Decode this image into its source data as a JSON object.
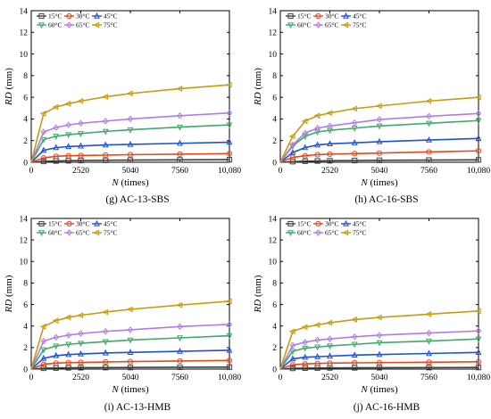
{
  "legend": {
    "series": [
      {
        "name": "15°C",
        "color": "#3f3f3f",
        "marker": "square"
      },
      {
        "name": "30°C",
        "color": "#e3491a",
        "marker": "circle"
      },
      {
        "name": "45°C",
        "color": "#1f4fd8",
        "marker": "triangle-up"
      },
      {
        "name": "60°C",
        "color": "#3fa86a",
        "marker": "triangle-down"
      },
      {
        "name": "65°C",
        "color": "#b07be8",
        "marker": "diamond"
      },
      {
        "name": "75°C",
        "color": "#c99a0a",
        "marker": "triangle-left"
      }
    ]
  },
  "axes": {
    "xlabel_var": "N",
    "xlabel_unit": " (times)",
    "ylabel_var": "RD",
    "ylabel_unit": " (mm)",
    "xticks": [
      "0",
      "2520",
      "5040",
      "7560",
      "10,080"
    ],
    "yticks": [
      "0",
      "2",
      "4",
      "6",
      "8",
      "10",
      "12",
      "14"
    ],
    "xlim": [
      0,
      10080
    ],
    "ylim": [
      0,
      14
    ]
  },
  "chart_data": [
    {
      "type": "line",
      "caption_letter": "(g)",
      "caption_text": " AC-13-SBS",
      "x": [
        0,
        630,
        1260,
        1890,
        2520,
        3780,
        5040,
        7560,
        10080
      ],
      "series": [
        {
          "name": "15°C",
          "values": [
            0,
            0.08,
            0.12,
            0.14,
            0.16,
            0.18,
            0.2,
            0.22,
            0.24
          ]
        },
        {
          "name": "30°C",
          "values": [
            0,
            0.4,
            0.55,
            0.6,
            0.62,
            0.66,
            0.7,
            0.75,
            0.8
          ]
        },
        {
          "name": "45°C",
          "values": [
            0,
            1.1,
            1.35,
            1.45,
            1.5,
            1.6,
            1.65,
            1.75,
            1.85
          ]
        },
        {
          "name": "60°C",
          "values": [
            0,
            2.1,
            2.4,
            2.55,
            2.65,
            2.85,
            3.0,
            3.25,
            3.45
          ]
        },
        {
          "name": "65°C",
          "values": [
            0,
            2.8,
            3.2,
            3.45,
            3.6,
            3.8,
            4.0,
            4.3,
            4.55
          ]
        },
        {
          "name": "75°C",
          "values": [
            0,
            4.5,
            5.1,
            5.4,
            5.65,
            6.05,
            6.35,
            6.8,
            7.15
          ]
        }
      ]
    },
    {
      "type": "line",
      "caption_letter": "(h)",
      "caption_text": " AC-16-SBS",
      "x": [
        0,
        630,
        1260,
        1890,
        2520,
        3780,
        5040,
        7560,
        10080
      ],
      "series": [
        {
          "name": "15°C",
          "values": [
            0,
            0.06,
            0.1,
            0.12,
            0.14,
            0.16,
            0.18,
            0.2,
            0.22
          ]
        },
        {
          "name": "30°C",
          "values": [
            0,
            0.45,
            0.6,
            0.7,
            0.75,
            0.8,
            0.85,
            0.95,
            1.05
          ]
        },
        {
          "name": "45°C",
          "values": [
            0,
            0.9,
            1.35,
            1.6,
            1.7,
            1.8,
            1.9,
            2.05,
            2.2
          ]
        },
        {
          "name": "60°C",
          "values": [
            0,
            1.5,
            2.4,
            2.8,
            2.95,
            3.15,
            3.35,
            3.6,
            3.85
          ]
        },
        {
          "name": "65°C",
          "values": [
            0,
            1.6,
            2.7,
            3.15,
            3.35,
            3.65,
            3.95,
            4.25,
            4.5
          ]
        },
        {
          "name": "75°C",
          "values": [
            0,
            2.4,
            3.8,
            4.3,
            4.55,
            4.95,
            5.2,
            5.65,
            6.0
          ]
        }
      ]
    },
    {
      "type": "line",
      "caption_letter": "(i)",
      "caption_text": " AC-13-HMB",
      "x": [
        0,
        630,
        1260,
        1890,
        2520,
        3780,
        5040,
        7560,
        10080
      ],
      "series": [
        {
          "name": "15°C",
          "values": [
            0,
            0.08,
            0.1,
            0.12,
            0.13,
            0.14,
            0.15,
            0.17,
            0.18
          ]
        },
        {
          "name": "30°C",
          "values": [
            0,
            0.45,
            0.55,
            0.6,
            0.62,
            0.66,
            0.7,
            0.75,
            0.8
          ]
        },
        {
          "name": "45°C",
          "values": [
            0,
            1.0,
            1.25,
            1.35,
            1.4,
            1.5,
            1.55,
            1.65,
            1.75
          ]
        },
        {
          "name": "60°C",
          "values": [
            0,
            1.8,
            2.15,
            2.3,
            2.4,
            2.55,
            2.7,
            2.9,
            3.1
          ]
        },
        {
          "name": "65°C",
          "values": [
            0,
            2.6,
            2.95,
            3.15,
            3.3,
            3.5,
            3.65,
            3.95,
            4.15
          ]
        },
        {
          "name": "75°C",
          "values": [
            0,
            3.95,
            4.5,
            4.8,
            5.0,
            5.3,
            5.55,
            5.95,
            6.3
          ]
        }
      ]
    },
    {
      "type": "line",
      "caption_letter": "(j)",
      "caption_text": " AC-16-HMB",
      "x": [
        0,
        630,
        1260,
        1890,
        2520,
        3780,
        5040,
        7560,
        10080
      ],
      "series": [
        {
          "name": "15°C",
          "values": [
            0,
            0.07,
            0.09,
            0.1,
            0.11,
            0.12,
            0.13,
            0.14,
            0.15
          ]
        },
        {
          "name": "30°C",
          "values": [
            0,
            0.4,
            0.48,
            0.52,
            0.55,
            0.58,
            0.6,
            0.64,
            0.68
          ]
        },
        {
          "name": "45°C",
          "values": [
            0,
            0.95,
            1.1,
            1.15,
            1.2,
            1.3,
            1.35,
            1.45,
            1.55
          ]
        },
        {
          "name": "60°C",
          "values": [
            0,
            1.65,
            1.95,
            2.05,
            2.15,
            2.3,
            2.45,
            2.6,
            2.8
          ]
        },
        {
          "name": "65°C",
          "values": [
            0,
            2.2,
            2.5,
            2.7,
            2.8,
            3.0,
            3.15,
            3.35,
            3.55
          ]
        },
        {
          "name": "75°C",
          "values": [
            0,
            3.5,
            3.9,
            4.1,
            4.3,
            4.6,
            4.8,
            5.1,
            5.4
          ]
        }
      ]
    }
  ]
}
